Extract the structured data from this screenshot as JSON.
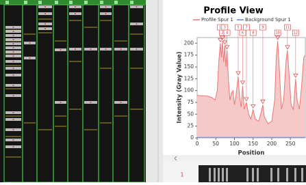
{
  "chart_data": {
    "type": "line",
    "title": "Profile View",
    "y_label": "Intensity (Gray Value)",
    "x_label": "Position",
    "xlim": [
      0,
      290
    ],
    "ylim": [
      0,
      212
    ],
    "xticks": [
      0,
      50,
      100,
      150,
      200,
      250
    ],
    "yticks": [
      0,
      25,
      50,
      75,
      100,
      125,
      150,
      175,
      200
    ],
    "legend": "top",
    "series": [
      {
        "name": "Profile  Spur 1",
        "color": "#e87878",
        "fill": "#f6c9c9",
        "x": [
          0,
          10,
          20,
          30,
          40,
          48,
          54,
          58,
          62,
          65,
          68,
          71,
          74,
          77,
          80,
          84,
          88,
          92,
          96,
          100,
          104,
          110,
          114,
          118,
          122,
          126,
          132,
          138,
          144,
          150,
          156,
          165,
          172,
          176,
          180,
          190,
          200,
          208,
          212,
          216,
          220,
          226,
          232,
          238,
          242,
          246,
          252,
          258,
          264,
          268,
          274,
          280,
          286,
          290
        ],
        "values": [
          90,
          89,
          89,
          88,
          85,
          80,
          100,
          160,
          200,
          170,
          205,
          160,
          195,
          150,
          185,
          120,
          80,
          95,
          100,
          70,
          90,
          130,
          85,
          65,
          110,
          60,
          75,
          50,
          40,
          60,
          40,
          35,
          55,
          70,
          45,
          30,
          35,
          80,
          170,
          205,
          150,
          60,
          80,
          160,
          185,
          140,
          70,
          60,
          125,
          80,
          60,
          110,
          170,
          175
        ]
      },
      {
        "name": "Background Spur 1",
        "color": "#5a7fd0",
        "x": [
          0,
          290
        ],
        "values": [
          1,
          1
        ]
      }
    ],
    "peaks": [
      {
        "label": "1",
        "x": 62,
        "y": 200
      },
      {
        "label": "2",
        "x": 68,
        "y": 205
      },
      {
        "label": "3",
        "x": 74,
        "y": 195
      },
      {
        "label": "4",
        "x": 80,
        "y": 185
      },
      {
        "label": "5",
        "x": 110,
        "y": 130
      },
      {
        "label": "6",
        "x": 122,
        "y": 110
      },
      {
        "label": "7",
        "x": 132,
        "y": 75
      },
      {
        "label": "8",
        "x": 150,
        "y": 60
      },
      {
        "label": "9",
        "x": 176,
        "y": 70
      },
      {
        "label": "10",
        "x": 216,
        "y": 205
      },
      {
        "label": "11",
        "x": 242,
        "y": 185
      },
      {
        "label": "12",
        "x": 264,
        "y": 125
      }
    ]
  },
  "thumbnail_label": "1"
}
